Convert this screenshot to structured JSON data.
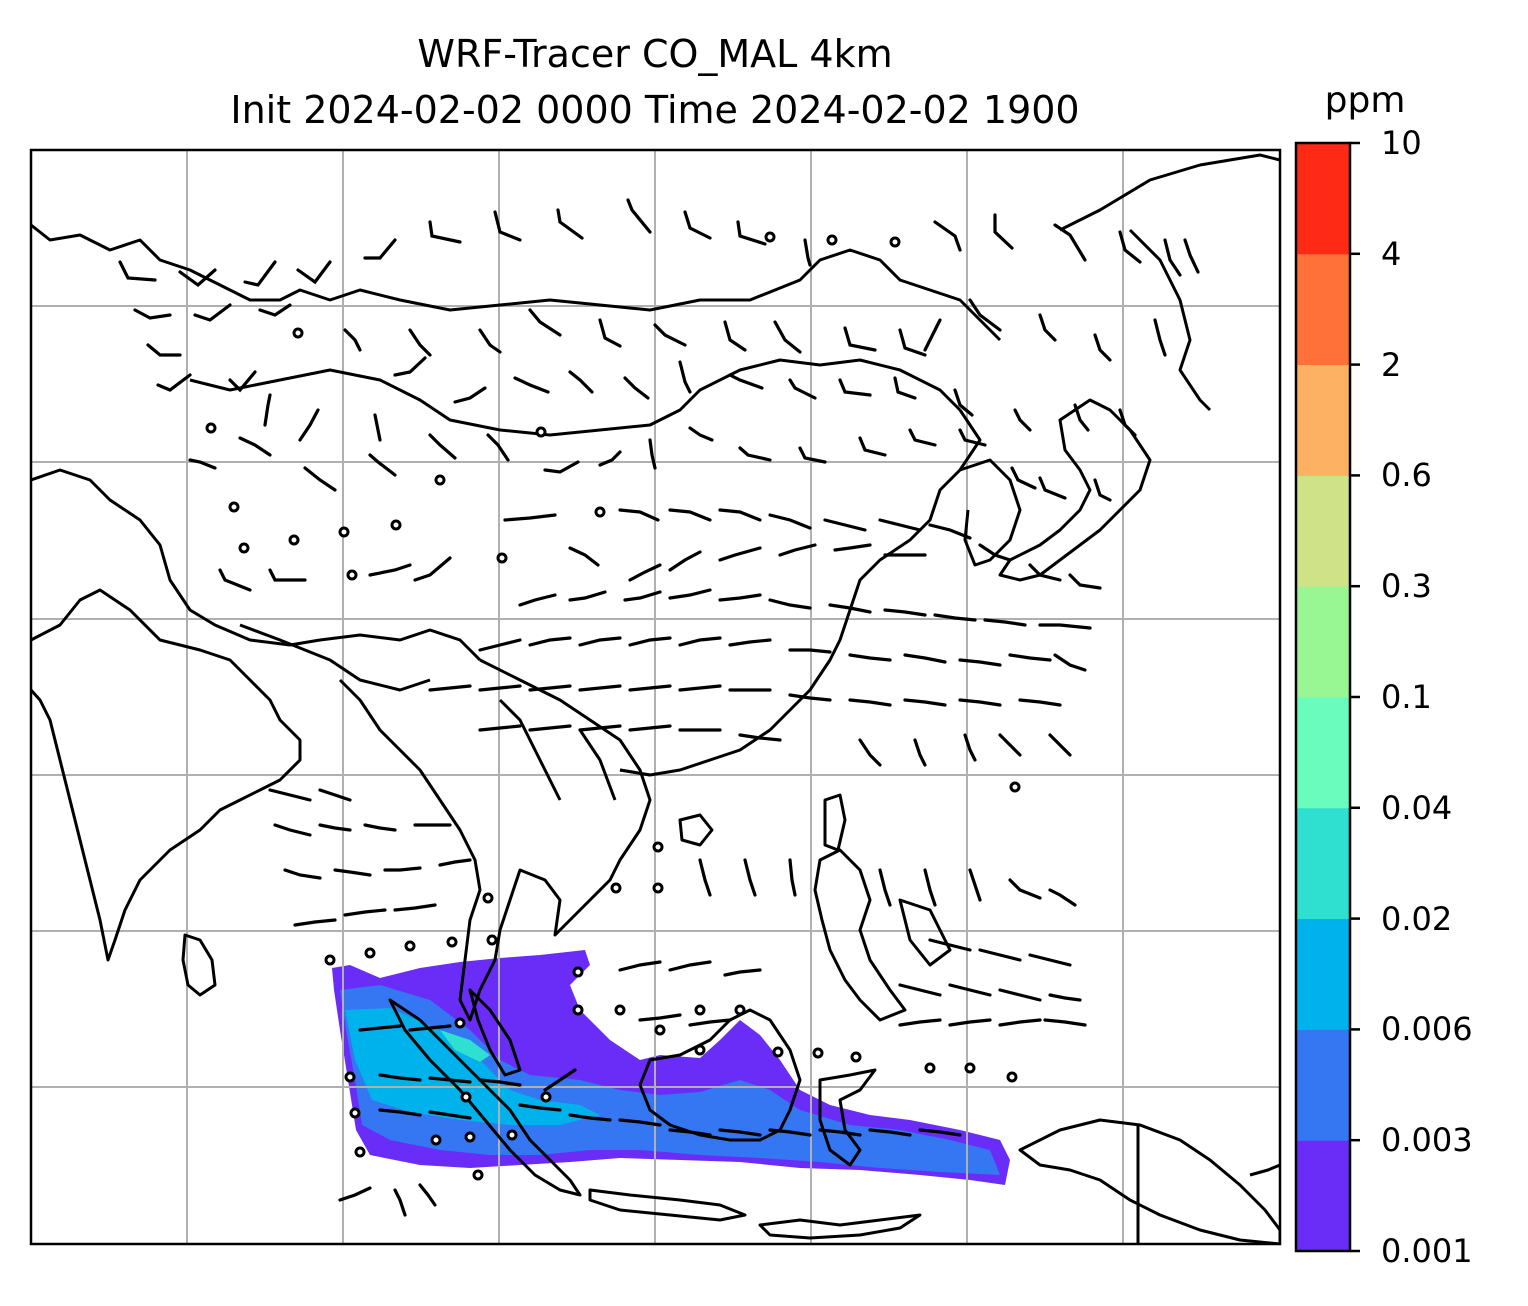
{
  "title": {
    "line1": "WRF-Tracer CO_MAL 4km",
    "line2": "Init 2024-02-02 0000 Time 2024-02-02 1900"
  },
  "colorbar": {
    "unit": "ppm",
    "levels": [
      "0.001",
      "0.003",
      "0.006",
      "0.02",
      "0.04",
      "0.1",
      "0.3",
      "0.6",
      "2",
      "4",
      "10"
    ],
    "colors": [
      "#6a2cf7",
      "#3576f2",
      "#00b2ec",
      "#2fdfd0",
      "#6afcbd",
      "#98f793",
      "#d0e287",
      "#fdb263",
      "#ff7139",
      "#ff2a15"
    ]
  },
  "map": {
    "gridlines": true,
    "coastline_color": "#000000",
    "grid_color": "#b0b0b0"
  }
}
